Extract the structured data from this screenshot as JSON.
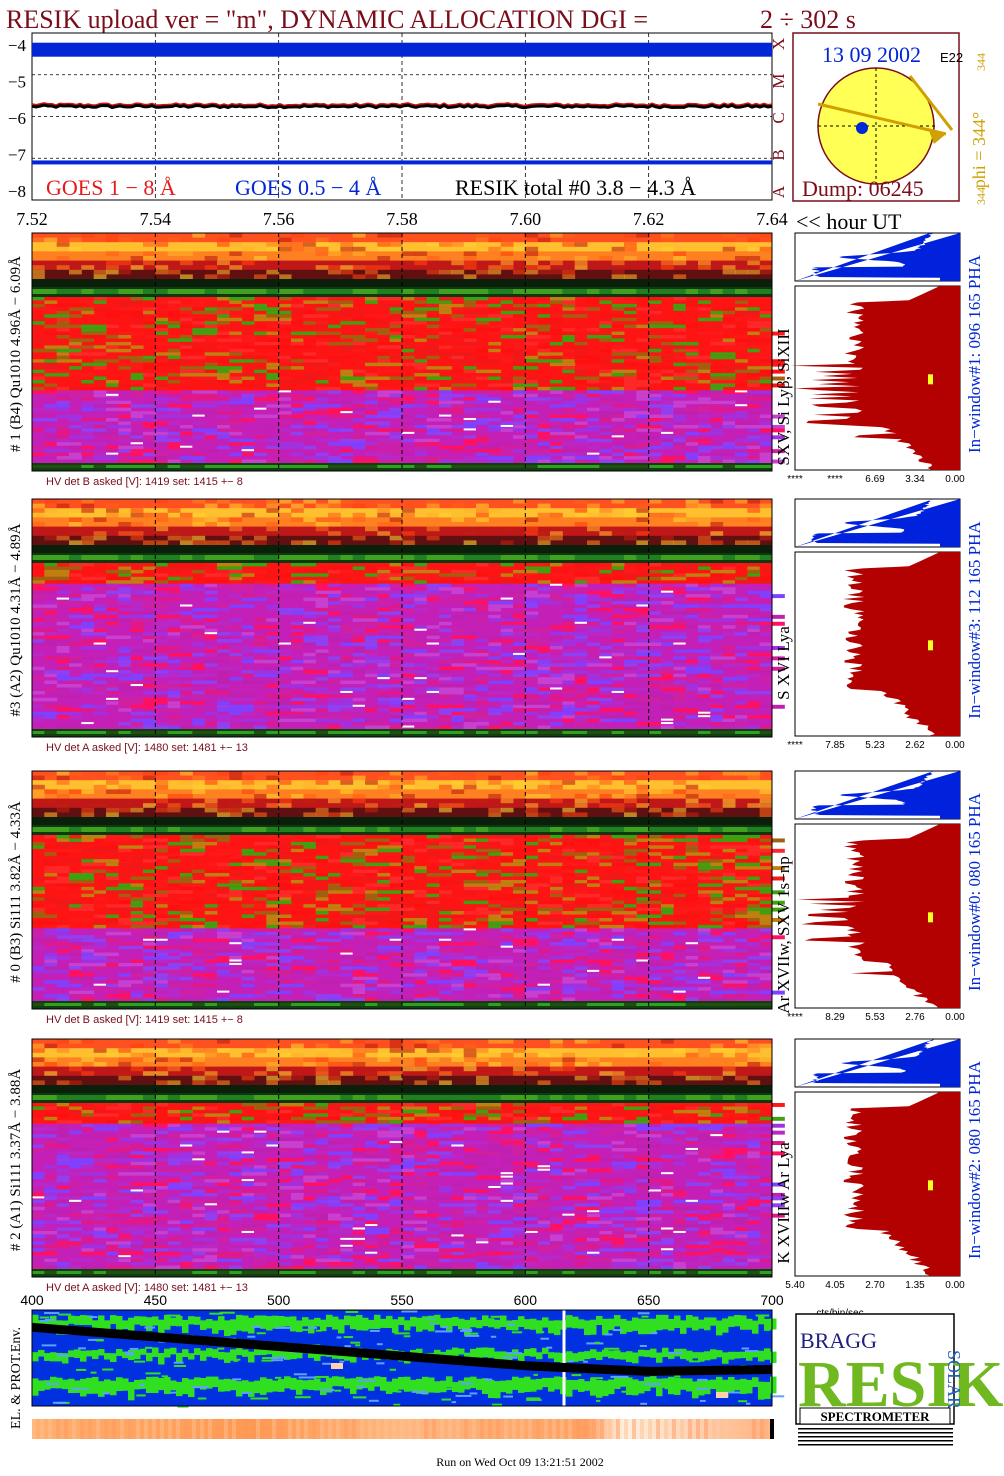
{
  "header": {
    "title": "RESIK upload ver = \"m\", DYNAMIC ALLOCATION  DGI =",
    "dgi": "2 ÷ 302 s",
    "hour_label": "<< hour UT",
    "footer": "Run on Wed Oct 09 13:21:51 2002"
  },
  "colors": {
    "title": "#7a0d1a",
    "goes_long": "#e41a1c",
    "goes_short": "#0026d6",
    "sun_disk": "#ffff55",
    "pha_blue": "#0022dd",
    "pha_red": "#b30000",
    "hv_text": "#7a0d1a"
  },
  "goes_panel": {
    "y_ticks": [
      "−4",
      "−5",
      "−6",
      "−7",
      "−8"
    ],
    "class_letters": [
      "X",
      "M",
      "C",
      "B",
      "A"
    ],
    "legend": {
      "goes_long": "GOES 1 − 8 Å",
      "goes_short": "GOES 0.5 − 4 Å",
      "resik_total": "RESIK total #0  3.8 − 4.3 Å"
    }
  },
  "sun_panel": {
    "date": "13 09 2002",
    "code": "E22",
    "dump": "Dump: 06245",
    "phi": "phi = 344°",
    "phi_top": "344",
    "phi_bottom": "344"
  },
  "pha_labels": {
    "bin_axis": "cts/bin/sec"
  },
  "env_panel": {
    "label": "EL. & PROT.Env."
  },
  "logo": {
    "big": "RESIK",
    "bragg": "BRAGG",
    "solar": "SOLAR",
    "banner": "SPECTROMETER"
  },
  "chart_data": [
    {
      "type": "line",
      "name": "goes-lightcurve",
      "x_ticks": [
        "7.52",
        "7.54",
        "7.56",
        "7.58",
        "7.60",
        "7.62",
        "7.64"
      ],
      "xlim": [
        7.52,
        7.64
      ],
      "ylim": [
        -8,
        -4
      ],
      "series": [
        {
          "name": "GOES 1 − 8 Å",
          "x": [
            7.52,
            7.64
          ],
          "y": [
            -4.4,
            -4.4
          ]
        },
        {
          "name": "GOES 0.5 − 4 Å",
          "x": [
            7.52,
            7.64
          ],
          "y": [
            -7.1,
            -7.1
          ]
        },
        {
          "name": "RESIK total #0  3.8 − 4.3 Å",
          "x": [
            7.52,
            7.54,
            7.56,
            7.58,
            7.6,
            7.62,
            7.64
          ],
          "y": [
            -5.75,
            -5.78,
            -5.76,
            -5.77,
            -5.75,
            -5.76,
            -5.75
          ]
        }
      ]
    },
    {
      "type": "heatmap",
      "name": "detector-spectrograms",
      "x_ticks": [
        "7.52",
        "7.54",
        "7.56",
        "7.58",
        "7.60",
        "7.62",
        "7.64"
      ],
      "panels": [
        {
          "detector": "# 1 (B4) Qu1010 4.96Å − 6.09Å",
          "lines": "SXV, Si Lyβ, SiXIII",
          "window": "In−window#1:  096 165 PHA",
          "hv": "HV det B asked [V]:  1419 set:  1415  +−   8",
          "pha_ticks": [
            "****",
            "****",
            "6.69",
            "3.34",
            "0.00"
          ]
        },
        {
          "detector": "#3 (A2) Qu1010  4.31Å − 4.89Å",
          "lines": "S XVI Lya",
          "window": "In−window#3:  112 165 PHA",
          "hv": "HV det A asked [V]:  1480 set:  1481  +−   13",
          "pha_ticks": [
            "****",
            "7.85",
            "5.23",
            "2.62",
            "0.00"
          ]
        },
        {
          "detector": "# 0 (B3) Si111  3.82Å − 4.33Å",
          "lines": "Ar XVIIw,  SXV 1s−np",
          "window": "In−window#0:  080 165 PHA",
          "hv": "HV det B asked [V]:  1419 set:  1415  +−   8",
          "pha_ticks": [
            "****",
            "8.29",
            "5.53",
            "2.76",
            "0.00"
          ]
        },
        {
          "detector": "# 2 (A1) Si111  3.37Å − 3.88Å",
          "lines": "K XVIIIw  Ar Lya",
          "window": "In−window#2:  080 165 PHA",
          "hv": "HV det A asked [V]:  1480 set:  1481  +−   13",
          "pha_ticks": [
            "5.40",
            "4.05",
            "2.70",
            "1.35",
            "0.00"
          ]
        }
      ]
    },
    {
      "type": "line",
      "name": "environment-orbit",
      "x_ticks": [
        "400",
        "450",
        "500",
        "550",
        "600",
        "650",
        "700"
      ],
      "xlim": [
        400,
        700
      ],
      "series": [
        {
          "name": "orbit-track",
          "x": [
            400,
            450,
            500,
            550,
            600,
            650,
            700
          ],
          "y": [
            0.82,
            0.72,
            0.62,
            0.52,
            0.42,
            0.36,
            0.38
          ]
        }
      ]
    }
  ]
}
